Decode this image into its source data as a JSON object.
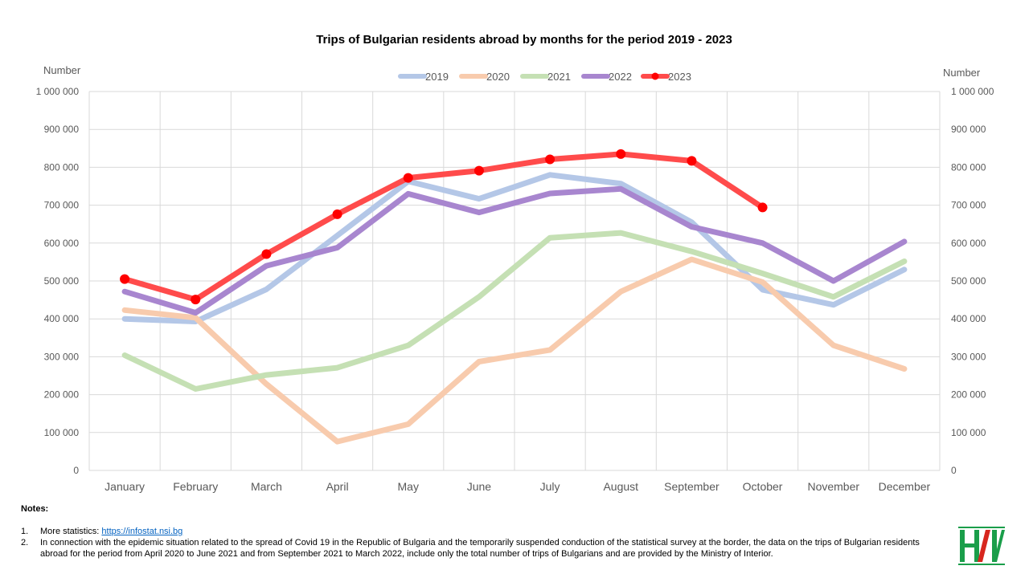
{
  "chart_data": {
    "type": "line",
    "title": "Trips of Bulgarian residents abroad by months for the period 2019 - 2023",
    "ylabel_left": "Number",
    "ylabel_right": "Number",
    "ylim": [
      0,
      1000000
    ],
    "yticks": [
      0,
      100000,
      200000,
      300000,
      400000,
      500000,
      600000,
      700000,
      800000,
      900000,
      1000000
    ],
    "ytick_labels": [
      "0",
      "100 000",
      "200 000",
      "300 000",
      "400 000",
      "500 000",
      "600 000",
      "700 000",
      "800 000",
      "900 000",
      "1 000 000"
    ],
    "categories": [
      "January",
      "February",
      "March",
      "April",
      "May",
      "June",
      "July",
      "August",
      "September",
      "October",
      "November",
      "December"
    ],
    "grid": true,
    "legend_position": "top-center",
    "series": [
      {
        "name": "2019",
        "color": "#b4c7e7",
        "opacity": 1,
        "markers": false,
        "values": [
          400000,
          393000,
          478000,
          620000,
          763000,
          717000,
          780000,
          757000,
          655000,
          477000,
          437000,
          530000
        ]
      },
      {
        "name": "2020",
        "color": "#f8cbad",
        "opacity": 1,
        "markers": false,
        "values": [
          423000,
          403000,
          228000,
          76000,
          122000,
          287000,
          318000,
          472000,
          557000,
          497000,
          330000,
          268000
        ]
      },
      {
        "name": "2021",
        "color": "#c5e0b4",
        "opacity": 1,
        "markers": false,
        "values": [
          304000,
          215000,
          252000,
          271000,
          330000,
          458000,
          614000,
          627000,
          578000,
          520000,
          458000,
          552000
        ]
      },
      {
        "name": "2022",
        "color": "#a886cf",
        "opacity": 1,
        "markers": false,
        "values": [
          472000,
          416000,
          540000,
          588000,
          730000,
          681000,
          731000,
          743000,
          643000,
          600000,
          500000,
          604000
        ]
      },
      {
        "name": "2023",
        "color": "#ff4b4b",
        "marker_color": "#ff0000",
        "opacity": 1,
        "markers": true,
        "values": [
          505000,
          451000,
          571000,
          676000,
          772000,
          791000,
          821000,
          835000,
          817000,
          694000,
          null,
          null
        ]
      }
    ]
  },
  "notes": {
    "heading": "Notes:",
    "items": [
      {
        "num": "1.",
        "prefix": "More statistics: ",
        "link": "https://infostat.nsi.bg"
      },
      {
        "num": "2.",
        "text": "In connection with the epidemic situation related to the spread of Covid 19 in the Republic of Bulgaria and the temporarily suspended conduction of the statistical survey at the border, the data on the trips of Bulgarian residents abroad for the period from April 2020 to June 2021 and from September 2021 to March 2022, include only the total number of trips of Bulgarians and are provided by the Ministry of Interior."
      }
    ]
  },
  "logo": {
    "name": "NSI logo",
    "colors": [
      "#1a9e4a",
      "#d7261e"
    ]
  }
}
